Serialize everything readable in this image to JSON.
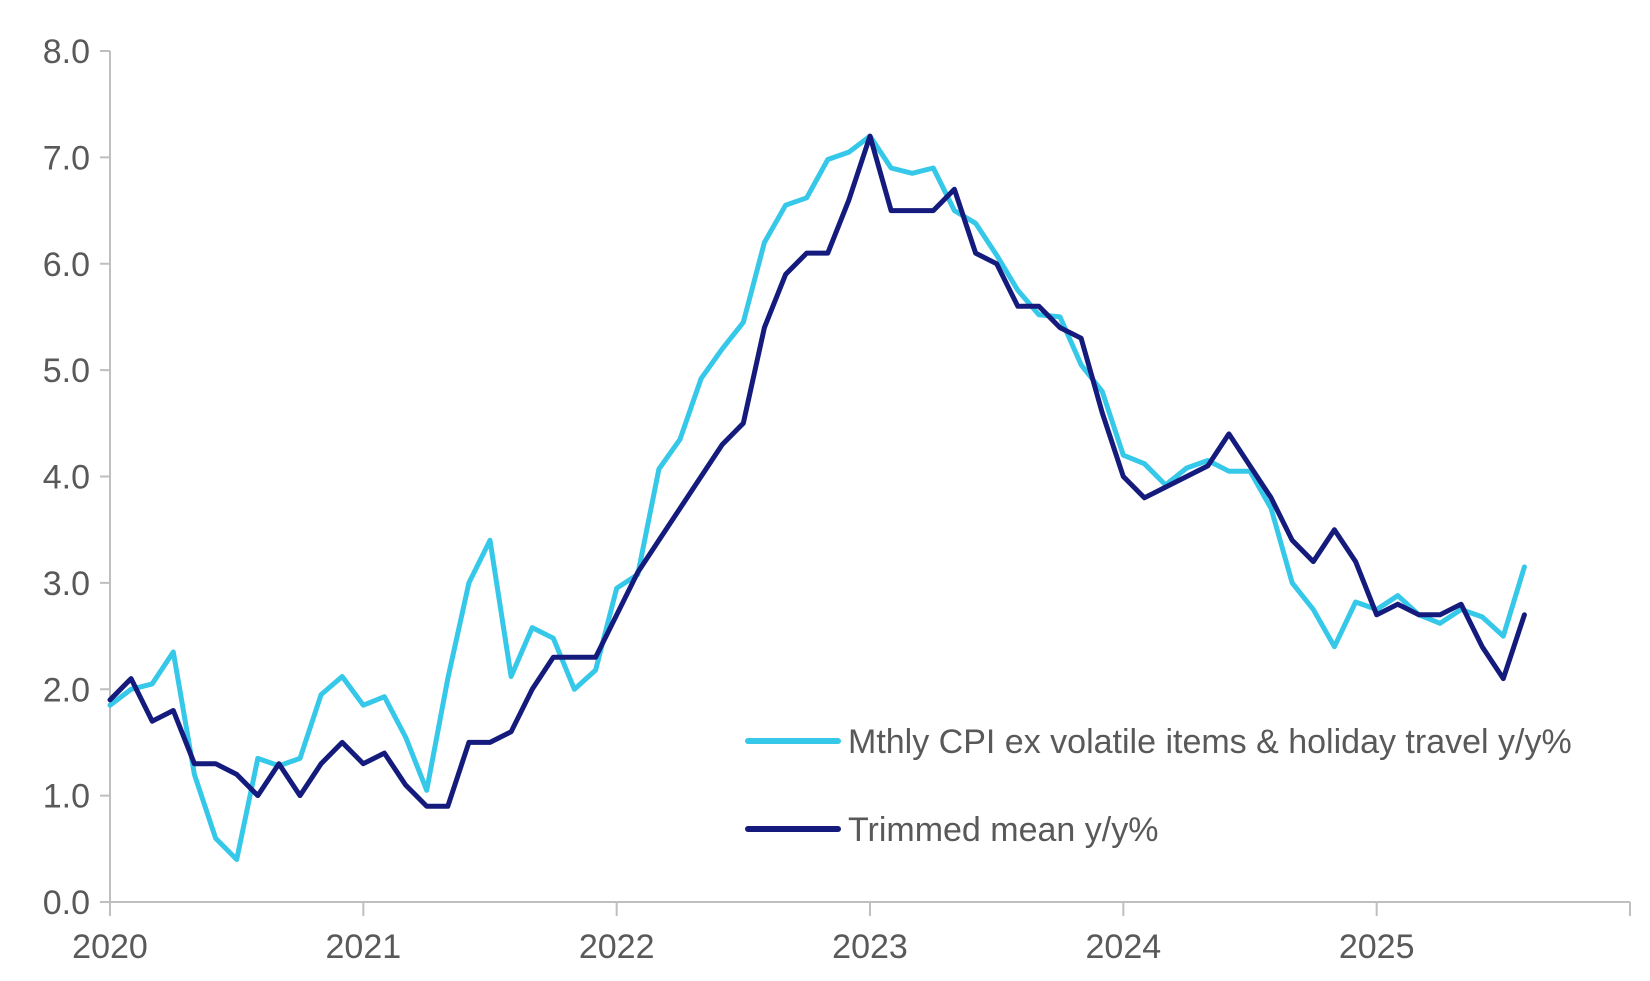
{
  "chart_data": {
    "type": "line",
    "title": "",
    "xlabel": "",
    "ylabel": "",
    "ylim": [
      0,
      8
    ],
    "y_ticks": [
      "0.0",
      "1.0",
      "2.0",
      "3.0",
      "4.0",
      "5.0",
      "6.0",
      "7.0",
      "8.0"
    ],
    "x_ticks": [
      "2020",
      "2021",
      "2022",
      "2023",
      "2024",
      "2025"
    ],
    "x_start_year": 2020,
    "x_end_year": 2026,
    "legend_position": "bottom-right",
    "colors": {
      "cpi": "#35C8E8",
      "trimmed": "#141B7C",
      "axis": "#BFBFBF",
      "text": "#595959"
    },
    "series": [
      {
        "key": "cpi",
        "name": "Mthly CPI ex volatile items & holiday travel y/y%",
        "start": "2020-01",
        "values": [
          1.85,
          2.0,
          2.05,
          2.35,
          1.2,
          0.6,
          0.4,
          1.35,
          1.28,
          1.35,
          1.95,
          2.12,
          1.85,
          1.93,
          1.55,
          1.05,
          2.1,
          3.0,
          3.4,
          2.12,
          2.58,
          2.48,
          2.0,
          2.18,
          2.95,
          3.08,
          4.07,
          4.35,
          4.92,
          5.2,
          5.45,
          6.2,
          6.55,
          6.62,
          6.98,
          7.05,
          7.2,
          6.9,
          6.85,
          6.9,
          6.5,
          6.38,
          6.08,
          5.75,
          5.52,
          5.5,
          5.05,
          4.8,
          4.2,
          4.12,
          3.92,
          4.08,
          4.15,
          4.05,
          4.05,
          3.7,
          3.0,
          2.75,
          2.4,
          2.82,
          2.75,
          2.88,
          2.7,
          2.62,
          2.75,
          2.68,
          2.5,
          3.15
        ]
      },
      {
        "key": "trimmed",
        "name": "Trimmed mean y/y%",
        "start": "2020-01",
        "values": [
          1.9,
          2.1,
          1.7,
          1.8,
          1.3,
          1.3,
          1.2,
          1.0,
          1.3,
          1.0,
          1.3,
          1.5,
          1.3,
          1.4,
          1.1,
          0.9,
          0.9,
          1.5,
          1.5,
          1.6,
          2.0,
          2.3,
          2.3,
          2.3,
          2.7,
          3.1,
          3.4,
          3.7,
          4.0,
          4.3,
          4.5,
          5.4,
          5.9,
          6.1,
          6.1,
          6.6,
          7.2,
          6.5,
          6.5,
          6.5,
          6.7,
          6.1,
          6.0,
          5.6,
          5.6,
          5.4,
          5.3,
          4.6,
          4.0,
          3.8,
          3.9,
          4.0,
          4.1,
          4.4,
          4.1,
          3.8,
          3.4,
          3.2,
          3.5,
          3.2,
          2.7,
          2.8,
          2.7,
          2.7,
          2.8,
          2.4,
          2.1,
          2.7
        ]
      }
    ]
  }
}
